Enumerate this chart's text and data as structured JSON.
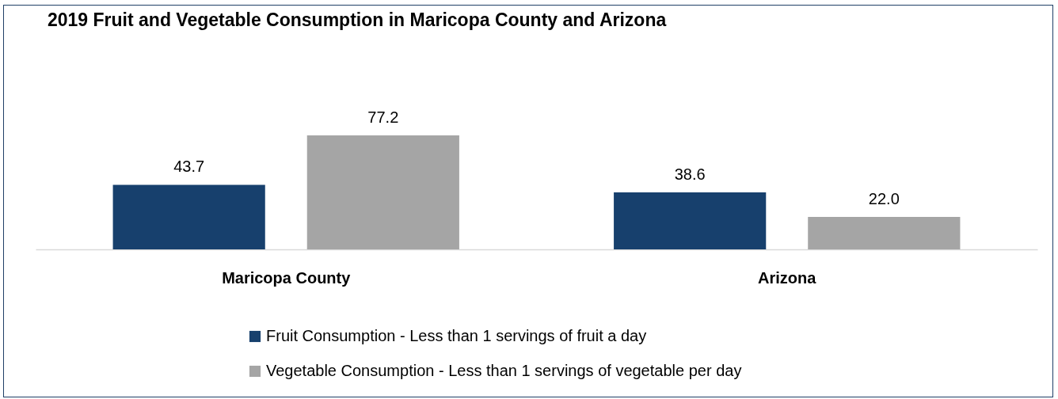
{
  "chart_data": {
    "type": "bar",
    "title": "2019 Fruit and Vegetable Consumption in Maricopa County and Arizona",
    "categories": [
      "Maricopa County",
      "Arizona"
    ],
    "series": [
      {
        "name": "Fruit Consumption - Less than 1 servings of fruit a day",
        "color": "#17406d",
        "values": [
          43.7,
          38.6
        ],
        "value_labels": [
          "43.7",
          "38.6"
        ]
      },
      {
        "name": "Vegetable Consumption - Less than 1 servings of vegetable per day",
        "color": "#a5a5a5",
        "values": [
          77.2,
          22.0
        ],
        "value_labels": [
          "77.2",
          "22.0"
        ]
      }
    ],
    "legend": "bottom",
    "grid": false
  }
}
